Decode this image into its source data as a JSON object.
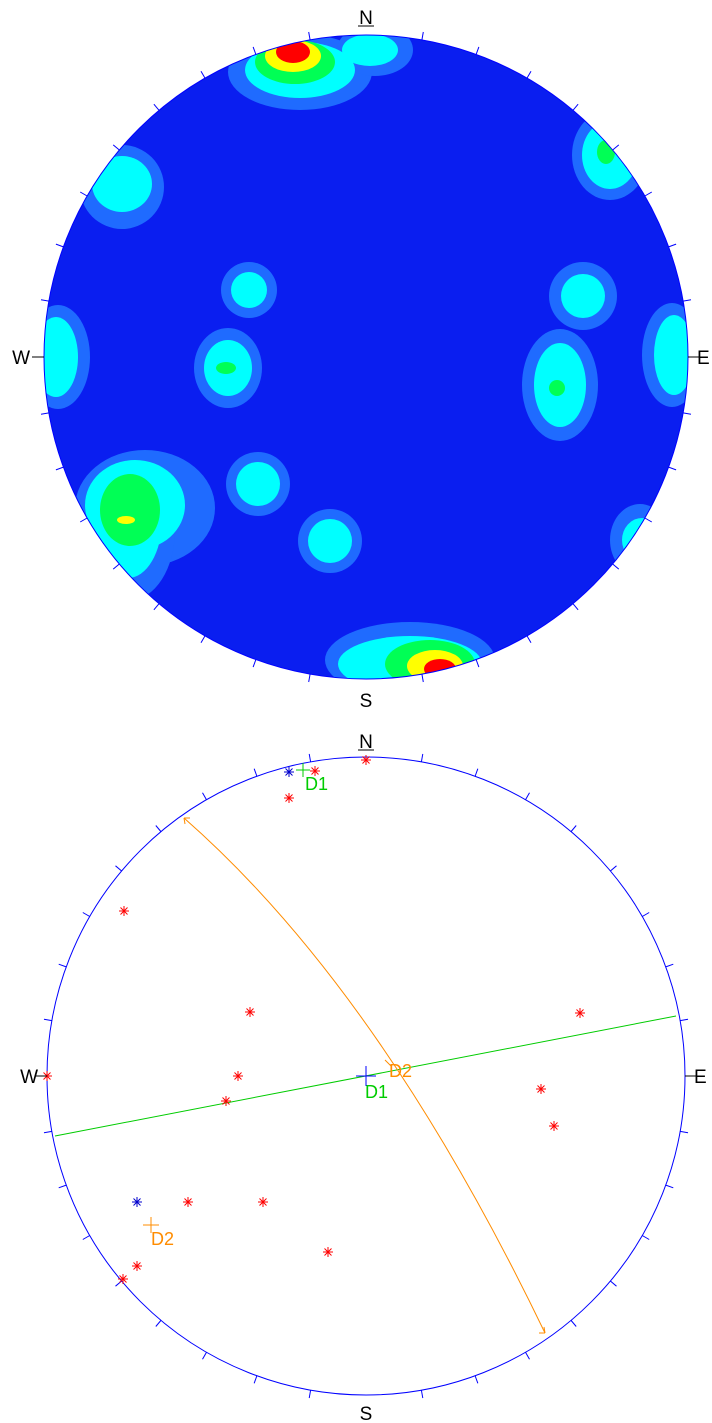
{
  "top_plot": {
    "labels": {
      "n": "N",
      "s": "S",
      "e": "E",
      "w": "W"
    },
    "colors": {
      "background": "#0a1ef0",
      "level1": "#1f6bff",
      "level2": "#00ffff",
      "level3": "#00ff55",
      "level4": "#ffff00",
      "level5": "#ff0000",
      "tick": "#0000ff"
    }
  },
  "bottom_plot": {
    "labels": {
      "n": "N",
      "s": "S",
      "e": "E",
      "w": "W"
    },
    "great_circle_labels": {
      "d1": "D1",
      "d2": "D2"
    },
    "pole_labels": {
      "d1": "D1",
      "d2": "D2"
    },
    "colors": {
      "primitive": "#0000ff",
      "d1": "#00cc00",
      "d2": "#ff8c00",
      "pole_red": "#ff0000",
      "pole_blue": "#0000cc"
    }
  }
}
